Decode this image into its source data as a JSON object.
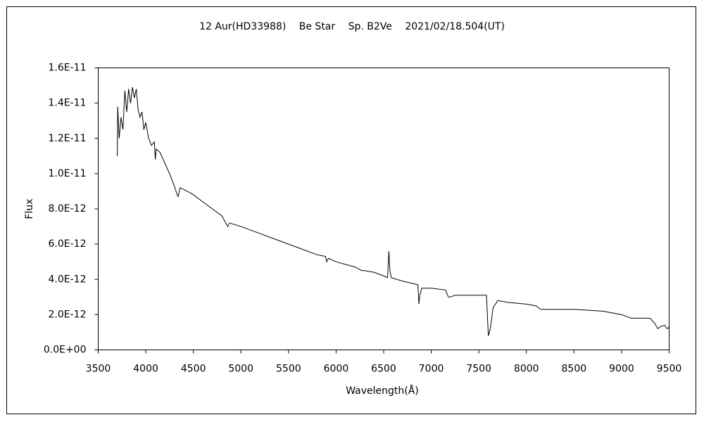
{
  "chart_data": {
    "type": "line",
    "title": "12 Aur(HD33988)　 Be Star　 Sp. B2Ve　 2021/02/18.504(UT)",
    "xlabel": "Wavelength(Å)",
    "ylabel": "Flux",
    "color": "#000000",
    "x": [
      3700,
      3705,
      3720,
      3740,
      3760,
      3780,
      3800,
      3820,
      3840,
      3860,
      3880,
      3900,
      3920,
      3940,
      3960,
      3980,
      4000,
      4030,
      4060,
      4090,
      4100,
      4110,
      4150,
      4200,
      4250,
      4300,
      4330,
      4340,
      4360,
      4400,
      4471,
      4500,
      4600,
      4700,
      4800,
      4861,
      4880,
      5000,
      5200,
      5400,
      5600,
      5800,
      5890,
      5900,
      5920,
      6000,
      6200,
      6270,
      6300,
      6400,
      6500,
      6540,
      6555,
      6565,
      6580,
      6700,
      6860,
      6870,
      6880,
      6900,
      7000,
      7150,
      7180,
      7200,
      7250,
      7400,
      7580,
      7600,
      7620,
      7650,
      7700,
      7800,
      8000,
      8100,
      8150,
      8200,
      8500,
      8800,
      9000,
      9100,
      9300,
      9350,
      9380,
      9400,
      9450,
      9480,
      9500
    ],
    "values": [
      1.1e-11,
      1.38e-11,
      1.2e-11,
      1.32e-11,
      1.25e-11,
      1.47e-11,
      1.35e-11,
      1.48e-11,
      1.4e-11,
      1.49e-11,
      1.43e-11,
      1.48e-11,
      1.36e-11,
      1.32e-11,
      1.35e-11,
      1.25e-11,
      1.29e-11,
      1.2e-11,
      1.16e-11,
      1.18e-11,
      1.08e-11,
      1.14e-11,
      1.12e-11,
      1.06e-11,
      1e-11,
      9.3e-12,
      8.8e-12,
      8.7e-12,
      9.2e-12,
      9.1e-12,
      8.9e-12,
      8.8e-12,
      8.4e-12,
      8e-12,
      7.6e-12,
      7e-12,
      7.2e-12,
      7e-12,
      6.6e-12,
      6.2e-12,
      5.8e-12,
      5.4e-12,
      5.3e-12,
      5e-12,
      5.2e-12,
      5e-12,
      4.7e-12,
      4.5e-12,
      4.5e-12,
      4.4e-12,
      4.2e-12,
      4.1e-12,
      5.6e-12,
      4.5e-12,
      4.1e-12,
      3.9e-12,
      3.7e-12,
      2.6e-12,
      3.1e-12,
      3.5e-12,
      3.5e-12,
      3.4e-12,
      3e-12,
      3e-12,
      3.1e-12,
      3.1e-12,
      3.1e-12,
      8e-13,
      1.2e-12,
      2.4e-12,
      2.8e-12,
      2.7e-12,
      2.6e-12,
      2.5e-12,
      2.3e-12,
      2.3e-12,
      2.3e-12,
      2.2e-12,
      2e-12,
      1.8e-12,
      1.8e-12,
      1.5e-12,
      1.2e-12,
      1.3e-12,
      1.4e-12,
      1.2e-12,
      1.3e-12
    ],
    "xlim": [
      3500,
      9500
    ],
    "xticks": [
      3500,
      4000,
      4500,
      5000,
      5500,
      6000,
      6500,
      7000,
      7500,
      8000,
      8500,
      9000,
      9500
    ],
    "ylim": [
      0,
      1.6e-11
    ],
    "yticks": [
      {
        "value": 0,
        "label": "0.0E+00"
      },
      {
        "value": 2e-12,
        "label": "2.0E-12"
      },
      {
        "value": 4e-12,
        "label": "4.0E-12"
      },
      {
        "value": 6e-12,
        "label": "6.0E-12"
      },
      {
        "value": 8e-12,
        "label": "8.0E-12"
      },
      {
        "value": 1e-11,
        "label": "1.0E-11"
      },
      {
        "value": 1.2e-11,
        "label": "1.2E-11"
      },
      {
        "value": 1.4e-11,
        "label": "1.4E-11"
      },
      {
        "value": 1.6e-11,
        "label": "1.6E-11"
      }
    ],
    "grid": false
  }
}
